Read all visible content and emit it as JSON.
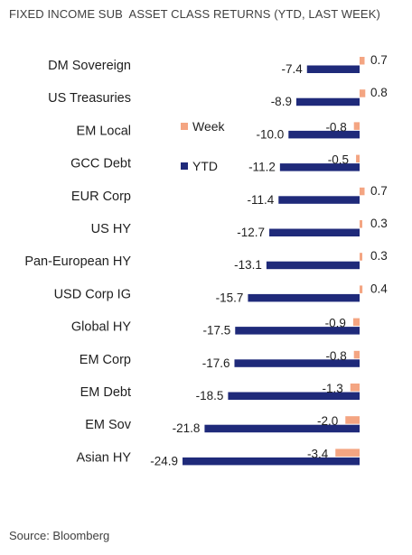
{
  "chart_data": {
    "type": "bar",
    "orientation": "horizontal",
    "title": "FIXED INCOME SUB  ASSET CLASS RETURNS (YTD, LAST WEEK)",
    "categories": [
      "DM Sovereign",
      "US Treasuries",
      "EM Local",
      "GCC Debt",
      "EUR Corp",
      "US HY",
      "Pan-European HY",
      "USD Corp IG",
      "Global HY",
      "EM Corp",
      "EM Debt",
      "EM Sov",
      "Asian HY"
    ],
    "series": [
      {
        "name": "Week",
        "color": "#f4a582",
        "values": [
          0.7,
          0.8,
          -0.8,
          -0.5,
          0.7,
          0.3,
          0.3,
          0.4,
          -0.9,
          -0.8,
          -1.3,
          -2.0,
          -3.4
        ],
        "labels": [
          "0.7",
          "0.8",
          "-0.8",
          "-0.5",
          "0.7",
          "0.3",
          "0.3",
          "0.4",
          "-0.9",
          "-0.8",
          "-1.3",
          "-2.0",
          "-3.4"
        ]
      },
      {
        "name": "YTD",
        "color": "#1f2a7a",
        "values": [
          -7.4,
          -8.9,
          -10.0,
          -11.2,
          -11.4,
          -12.7,
          -13.1,
          -15.7,
          -17.5,
          -17.6,
          -18.5,
          -21.8,
          -24.9
        ],
        "labels": [
          "-7.4",
          "-8.9",
          "-10.0",
          "-11.2",
          "-11.4",
          "-12.7",
          "-13.1",
          "-15.7",
          "-17.5",
          "-17.6",
          "-18.5",
          "-21.8",
          "-24.9"
        ]
      }
    ],
    "legend": {
      "placement": "center"
    },
    "grid": false,
    "source": "Source: Bloomberg"
  }
}
